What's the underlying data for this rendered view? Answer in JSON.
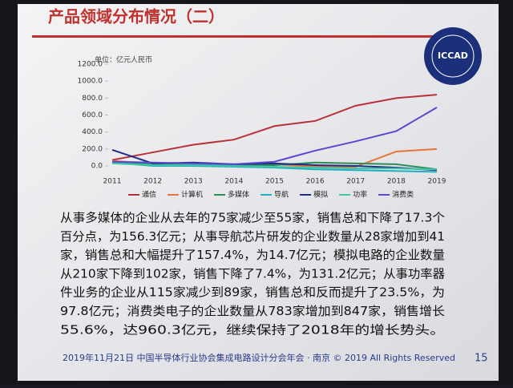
{
  "title": "产品领域分布情况（二）",
  "logo_text": "ICCAD",
  "chart_data": {
    "type": "line",
    "unit_label": "单位：亿元人民币",
    "categories": [
      "2011",
      "2012",
      "2013",
      "2014",
      "2015",
      "2016",
      "2017",
      "2018",
      "2019"
    ],
    "ylim": [
      -200,
      1200
    ],
    "yticks": [
      {
        "value": 0,
        "label": "0.0"
      },
      {
        "value": 200,
        "label": "200.0"
      },
      {
        "value": 400,
        "label": "400.0"
      },
      {
        "value": 600,
        "label": "600.0"
      },
      {
        "value": 800,
        "label": "800.0"
      },
      {
        "value": 1000,
        "label": "1000.0"
      },
      {
        "value": 1200,
        "label": "1200.0"
      }
    ],
    "series": [
      {
        "name": "通信",
        "color": "#b8323a",
        "values": [
          70,
          160,
          250,
          310,
          470,
          530,
          710,
          800,
          840
        ]
      },
      {
        "name": "计算机",
        "color": "#e8763c",
        "values": [
          60,
          30,
          30,
          20,
          20,
          -10,
          -10,
          170,
          200
        ]
      },
      {
        "name": "多媒体",
        "color": "#2e8b57",
        "values": [
          50,
          20,
          20,
          10,
          10,
          40,
          30,
          20,
          -40
        ]
      },
      {
        "name": "导航",
        "color": "#22b0c0",
        "values": [
          40,
          0,
          0,
          -10,
          -20,
          -40,
          -50,
          -60,
          -70
        ]
      },
      {
        "name": "模拟",
        "color": "#1f2f80",
        "values": [
          190,
          30,
          40,
          20,
          30,
          10,
          0,
          -20,
          -50
        ]
      },
      {
        "name": "功率",
        "color": "#3fc7a8",
        "values": [
          30,
          10,
          10,
          0,
          -10,
          -20,
          -30,
          -30,
          -40
        ]
      },
      {
        "name": "消费类",
        "color": "#5a48d0",
        "values": [
          50,
          40,
          30,
          20,
          50,
          180,
          290,
          410,
          690
        ]
      }
    ]
  },
  "body_lines": [
    "从事多媒体的企业从去年的75家减少至55家，销售总和下降了17.3个",
    "百分点，为156.3亿元；从事导航芯片研发的企业数量从28家增加到41",
    "家，销售总和大幅提升了157.4%，为14.7亿元；模拟电路的企业数量",
    "从210家下降到102家，销售下降了7.4%，为131.2亿元；从事功率器",
    "件业务的企业从115家减少到89家，销售总和反而提升了23.5%，为",
    "97.8亿元；消费类电子的企业数量从783家增加到847家，销售增长",
    "55.6%，达960.3亿元，继续保持了2018年的增长势头。"
  ],
  "footer": "2019年11月21日  中国半导体行业协会集成电路设计分会年会 · 南京 © 2019 All Rights Reserved",
  "page_number": "15"
}
